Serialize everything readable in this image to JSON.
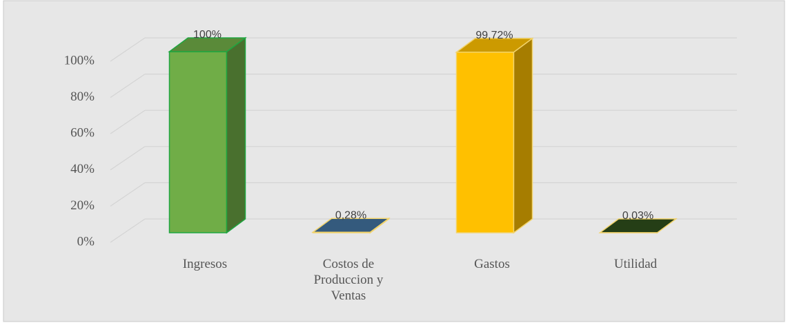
{
  "chart_data": {
    "type": "bar3d",
    "categories": [
      "Ingresos",
      "Costos de Produccion y Ventas",
      "Gastos",
      "Utilidad"
    ],
    "values": [
      100,
      0.28,
      99.72,
      0.03
    ],
    "value_labels": [
      "100%",
      "0,28%",
      "99,72%",
      "0,03%"
    ],
    "colors": [
      "#70ad47",
      "#41719c",
      "#ffc000",
      "#2e4d1c"
    ],
    "ylim": [
      0,
      100
    ],
    "yticks": [
      {
        "value": 0,
        "label": "0%"
      },
      {
        "value": 20,
        "label": "20%"
      },
      {
        "value": 40,
        "label": "40%"
      },
      {
        "value": 60,
        "label": "60%"
      },
      {
        "value": 80,
        "label": "80%"
      },
      {
        "value": 100,
        "label": "100%"
      }
    ],
    "grid": true
  }
}
